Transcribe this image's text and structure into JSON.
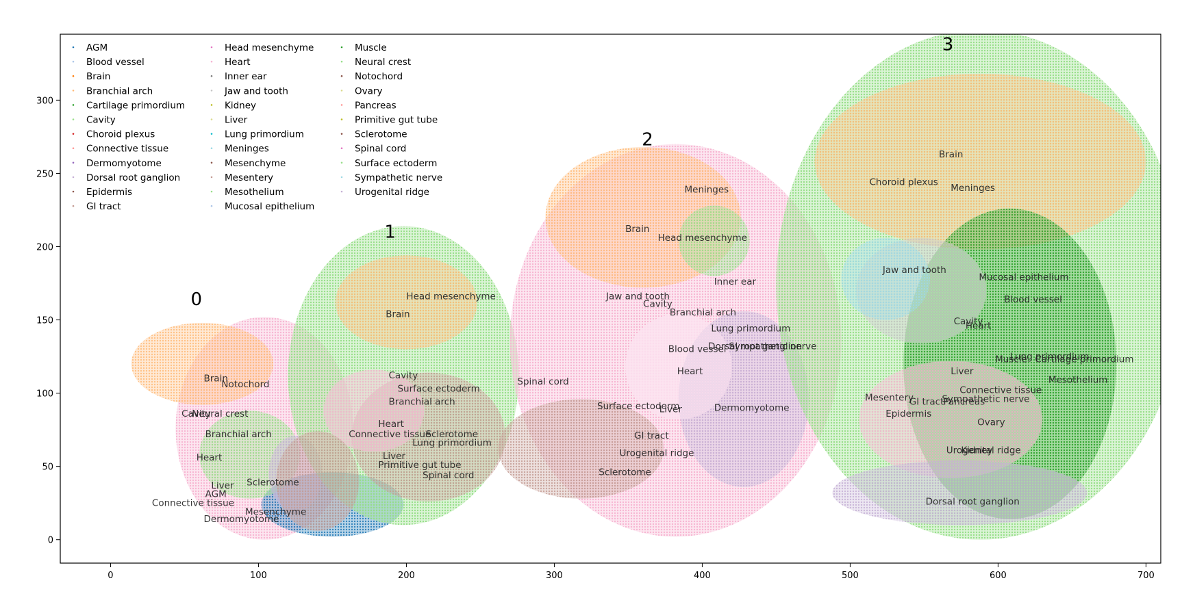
{
  "chart_data": {
    "type": "scatter",
    "title": "",
    "xlabel": "",
    "ylabel": "",
    "xlim": [
      -34,
      710
    ],
    "ylim": [
      -16,
      345
    ],
    "x_ticks": [
      0,
      100,
      200,
      300,
      400,
      500,
      600,
      700
    ],
    "y_ticks": [
      0,
      50,
      100,
      150,
      200,
      250,
      300
    ],
    "grid": false,
    "legend": {
      "placement": "top-left",
      "columns": 3,
      "entries": [
        {
          "name": "AGM",
          "color": "#1f77b4"
        },
        {
          "name": "Blood vessel",
          "color": "#aec7e8"
        },
        {
          "name": "Brain",
          "color": "#ff7f0e"
        },
        {
          "name": "Branchial arch",
          "color": "#ffbb78"
        },
        {
          "name": "Cartilage primordium",
          "color": "#2ca02c"
        },
        {
          "name": "Cavity",
          "color": "#98df8a"
        },
        {
          "name": "Choroid plexus",
          "color": "#d62728"
        },
        {
          "name": "Connective tissue",
          "color": "#ff9896"
        },
        {
          "name": "Dermomyotome",
          "color": "#9467bd"
        },
        {
          "name": "Dorsal root ganglion",
          "color": "#c5b0d5"
        },
        {
          "name": "Epidermis",
          "color": "#8c564b"
        },
        {
          "name": "GI tract",
          "color": "#c49c94"
        },
        {
          "name": "Head mesenchyme",
          "color": "#e377c2"
        },
        {
          "name": "Heart",
          "color": "#f7b6d2"
        },
        {
          "name": "Inner ear",
          "color": "#7f7f7f"
        },
        {
          "name": "Jaw and tooth",
          "color": "#c7c7c7"
        },
        {
          "name": "Kidney",
          "color": "#bcbd22"
        },
        {
          "name": "Liver",
          "color": "#dbdb8d"
        },
        {
          "name": "Lung primordium",
          "color": "#17becf"
        },
        {
          "name": "Meninges",
          "color": "#9edae5"
        },
        {
          "name": "Mesenchyme",
          "color": "#8c564b"
        },
        {
          "name": "Mesentery",
          "color": "#c49c94"
        },
        {
          "name": "Mesothelium",
          "color": "#98df8a"
        },
        {
          "name": "Mucosal epithelium",
          "color": "#aec7e8"
        },
        {
          "name": "Muscle",
          "color": "#2ca02c"
        },
        {
          "name": "Neural crest",
          "color": "#98df8a"
        },
        {
          "name": "Notochord",
          "color": "#8c564b"
        },
        {
          "name": "Ovary",
          "color": "#dbdb8d"
        },
        {
          "name": "Pancreas",
          "color": "#ff9896"
        },
        {
          "name": "Primitive gut tube",
          "color": "#bcbd22"
        },
        {
          "name": "Sclerotome",
          "color": "#8c564b"
        },
        {
          "name": "Spinal cord",
          "color": "#e377c2"
        },
        {
          "name": "Surface ectoderm",
          "color": "#98df8a"
        },
        {
          "name": "Sympathetic nerve",
          "color": "#9edae5"
        },
        {
          "name": "Urogenital ridge",
          "color": "#c5b0d5"
        }
      ]
    },
    "sections": [
      {
        "label": "0",
        "label_pos": [
          58,
          160
        ],
        "center": [
          104,
          76
        ],
        "radii": [
          60,
          76
        ],
        "base_color": "#f7b6d2",
        "regions": [
          {
            "c": [
              62,
              120
            ],
            "r": [
              48,
              28
            ],
            "color": "#ffbb78"
          },
          {
            "c": [
              150,
              24
            ],
            "r": [
              48,
              22
            ],
            "color": "#1f77b4"
          },
          {
            "c": [
              94,
              58
            ],
            "r": [
              34,
              30
            ],
            "color": "#98df8a"
          },
          {
            "c": [
              125,
              45
            ],
            "r": [
              18,
              26
            ],
            "color": "#c5b0d5"
          }
        ]
      },
      {
        "label": "1",
        "label_pos": [
          189,
          206
        ],
        "center": [
          198,
          112
        ],
        "radii": [
          78,
          102
        ],
        "base_color": "#98df8a",
        "regions": [
          {
            "c": [
              200,
              162
            ],
            "r": [
              48,
              32
            ],
            "color": "#ffbb78"
          },
          {
            "c": [
              215,
              70
            ],
            "r": [
              52,
              44
            ],
            "color": "#c49c94"
          },
          {
            "c": [
              178,
              88
            ],
            "r": [
              34,
              28
            ],
            "color": "#f7b6d2"
          },
          {
            "c": [
              140,
              40
            ],
            "r": [
              28,
              34
            ],
            "color": "#c49c94"
          }
        ]
      },
      {
        "label": "2",
        "label_pos": [
          363,
          269
        ],
        "center": [
          382,
          136
        ],
        "radii": [
          112,
          134
        ],
        "base_color": "#f7b6d2",
        "regions": [
          {
            "c": [
              360,
              220
            ],
            "r": [
              66,
              48
            ],
            "color": "#ffbb78"
          },
          {
            "c": [
              428,
              96
            ],
            "r": [
              44,
              60
            ],
            "color": "#c5b0d5"
          },
          {
            "c": [
              318,
              62
            ],
            "r": [
              56,
              34
            ],
            "color": "#c49c94"
          },
          {
            "c": [
              384,
              118
            ],
            "r": [
              36,
              36
            ],
            "color": "#fbe0ef"
          },
          {
            "c": [
              408,
              204
            ],
            "r": [
              24,
              24
            ],
            "color": "#98df8a"
          }
        ]
      },
      {
        "label": "3",
        "label_pos": [
          566,
          334
        ],
        "center": [
          588,
          174
        ],
        "radii": [
          138,
          174
        ],
        "base_color": "#98df8a",
        "regions": [
          {
            "c": [
              588,
              258
            ],
            "r": [
              112,
              60
            ],
            "color": "#ffbb78"
          },
          {
            "c": [
              608,
              120
            ],
            "r": [
              72,
              106
            ],
            "color": "#2ca02c"
          },
          {
            "c": [
              548,
              170
            ],
            "r": [
              44,
              36
            ],
            "color": "#c7c7c7"
          },
          {
            "c": [
              568,
              82
            ],
            "r": [
              62,
              40
            ],
            "color": "#f7b6d2"
          },
          {
            "c": [
              574,
              32
            ],
            "r": [
              86,
              22
            ],
            "color": "#c5b0d5"
          },
          {
            "c": [
              524,
              178
            ],
            "r": [
              30,
              28
            ],
            "color": "#9edae5"
          }
        ]
      }
    ],
    "annotations": [
      {
        "text": "Brain",
        "x": 63,
        "y": 108
      },
      {
        "text": "Notochord",
        "x": 75,
        "y": 104
      },
      {
        "text": "Cavity",
        "x": 48,
        "y": 84
      },
      {
        "text": "Neural crest",
        "x": 55,
        "y": 84
      },
      {
        "text": "Branchial arch",
        "x": 64,
        "y": 70
      },
      {
        "text": "Heart",
        "x": 58,
        "y": 54
      },
      {
        "text": "Sclerotome",
        "x": 92,
        "y": 37
      },
      {
        "text": "Liver",
        "x": 68,
        "y": 35
      },
      {
        "text": "AGM",
        "x": 64,
        "y": 29
      },
      {
        "text": "Connective tissue",
        "x": 28,
        "y": 23
      },
      {
        "text": "Mesenchyme",
        "x": 91,
        "y": 17
      },
      {
        "text": "Dermomyotome",
        "x": 63,
        "y": 12
      },
      {
        "text": "Head mesenchyme",
        "x": 200,
        "y": 164
      },
      {
        "text": "Brain",
        "x": 186,
        "y": 152
      },
      {
        "text": "Cavity",
        "x": 188,
        "y": 110
      },
      {
        "text": "Surface ectoderm",
        "x": 194,
        "y": 101
      },
      {
        "text": "Branchial arch",
        "x": 188,
        "y": 92
      },
      {
        "text": "Heart",
        "x": 181,
        "y": 77
      },
      {
        "text": "Connective tissue",
        "x": 161,
        "y": 70
      },
      {
        "text": "Sclerotome",
        "x": 213,
        "y": 70
      },
      {
        "text": "Lung primordium",
        "x": 204,
        "y": 64
      },
      {
        "text": "Liver",
        "x": 184,
        "y": 55
      },
      {
        "text": "Primitive gut tube",
        "x": 181,
        "y": 49
      },
      {
        "text": "Spinal cord",
        "x": 211,
        "y": 42
      },
      {
        "text": "Meninges",
        "x": 388,
        "y": 237
      },
      {
        "text": "Brain",
        "x": 348,
        "y": 210
      },
      {
        "text": "Head mesenchyme",
        "x": 370,
        "y": 204
      },
      {
        "text": "Inner ear",
        "x": 408,
        "y": 174
      },
      {
        "text": "Jaw and tooth",
        "x": 335,
        "y": 164
      },
      {
        "text": "Cavity",
        "x": 360,
        "y": 159
      },
      {
        "text": "Branchial arch",
        "x": 378,
        "y": 153
      },
      {
        "text": "Lung primordium",
        "x": 406,
        "y": 142
      },
      {
        "text": "Dorsal root ganglion",
        "x": 404,
        "y": 130
      },
      {
        "text": "Sympathetic nerve",
        "x": 418,
        "y": 130
      },
      {
        "text": "Blood vessel",
        "x": 377,
        "y": 128
      },
      {
        "text": "Heart",
        "x": 383,
        "y": 113
      },
      {
        "text": "Spinal cord",
        "x": 275,
        "y": 106
      },
      {
        "text": "Surface ectoderm",
        "x": 329,
        "y": 89
      },
      {
        "text": "Liver",
        "x": 371,
        "y": 87
      },
      {
        "text": "Dermomyotome",
        "x": 408,
        "y": 88
      },
      {
        "text": "GI tract",
        "x": 354,
        "y": 69
      },
      {
        "text": "Urogenital ridge",
        "x": 344,
        "y": 57
      },
      {
        "text": "Sclerotome",
        "x": 330,
        "y": 44
      },
      {
        "text": "Brain",
        "x": 560,
        "y": 261
      },
      {
        "text": "Choroid plexus",
        "x": 513,
        "y": 242
      },
      {
        "text": "Meninges",
        "x": 568,
        "y": 238
      },
      {
        "text": "Jaw and tooth",
        "x": 522,
        "y": 182
      },
      {
        "text": "Mucosal epithelium",
        "x": 587,
        "y": 177
      },
      {
        "text": "Blood vessel",
        "x": 604,
        "y": 162
      },
      {
        "text": "Cavity",
        "x": 570,
        "y": 147
      },
      {
        "text": "Heart",
        "x": 578,
        "y": 144
      },
      {
        "text": "Lung primordium",
        "x": 608,
        "y": 123
      },
      {
        "text": "Muscle",
        "x": 598,
        "y": 121
      },
      {
        "text": "Cartilage primordium",
        "x": 625,
        "y": 121
      },
      {
        "text": "Liver",
        "x": 568,
        "y": 113
      },
      {
        "text": "Mesothelium",
        "x": 634,
        "y": 107
      },
      {
        "text": "Connective tissue",
        "x": 574,
        "y": 100
      },
      {
        "text": "Mesentery",
        "x": 510,
        "y": 95
      },
      {
        "text": "GI tract",
        "x": 540,
        "y": 92
      },
      {
        "text": "Sympathetic nerve",
        "x": 562,
        "y": 94
      },
      {
        "text": "Pancreas",
        "x": 563,
        "y": 92
      },
      {
        "text": "Epidermis",
        "x": 524,
        "y": 84
      },
      {
        "text": "Ovary",
        "x": 586,
        "y": 78
      },
      {
        "text": "Urogenital ridge",
        "x": 565,
        "y": 59
      },
      {
        "text": "Kidney",
        "x": 575,
        "y": 59
      },
      {
        "text": "Dorsal root ganglion",
        "x": 551,
        "y": 24
      }
    ]
  }
}
